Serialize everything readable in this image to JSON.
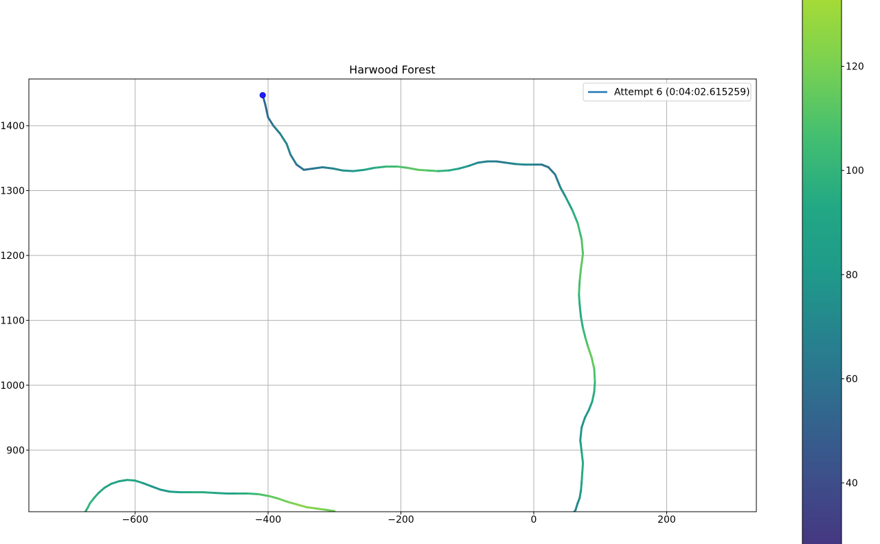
{
  "chart_data": {
    "type": "line",
    "title": "Harwood Forest",
    "xlabel": "",
    "ylabel": "",
    "xlim": [
      -760,
      335
    ],
    "ylim": [
      805,
      1472
    ],
    "x_ticks": [
      -600,
      -400,
      -200,
      0,
      200
    ],
    "x_tick_labels": [
      "−600",
      "−400",
      "−200",
      "0",
      "200"
    ],
    "y_ticks": [
      900,
      1000,
      1100,
      1200,
      1300,
      1400
    ],
    "y_tick_labels": [
      "900",
      "1000",
      "1100",
      "1200",
      "1300",
      "1400"
    ],
    "grid": true,
    "legend": {
      "placement": "top-right",
      "entries": [
        "Attempt 6 (0:04:02.615259)"
      ]
    },
    "colorbar": {
      "colormap": "viridis",
      "range": [
        28,
        133
      ],
      "ticks": [
        40,
        60,
        80,
        100,
        120
      ],
      "tick_labels": [
        "40",
        "60",
        "80",
        "100",
        "120"
      ]
    },
    "start_marker": {
      "x": -408,
      "y": 1447,
      "color": "#1f1fff"
    },
    "series": [
      {
        "name": "Attempt 6 (0:04:02.615259)",
        "legend_color": "#1f77b4",
        "x": [
          -408,
          -404,
          -400,
          -392,
          -382,
          -372,
          -366,
          -357,
          -346,
          -332,
          -318,
          -302,
          -288,
          -272,
          -255,
          -240,
          -222,
          -205,
          -190,
          -174,
          -160,
          -144,
          -128,
          -112,
          -98,
          -84,
          -70,
          -56,
          -42,
          -28,
          -14,
          0,
          12,
          22,
          32,
          40,
          48,
          58,
          66,
          72,
          74,
          71,
          69,
          68,
          69,
          71,
          74,
          78,
          82,
          87,
          91,
          92,
          91,
          88,
          83,
          77,
          72,
          70,
          72,
          74,
          73,
          72,
          71,
          69,
          66,
          63,
          61
        ],
        "y": [
          1447,
          1432,
          1413,
          1400,
          1388,
          1372,
          1355,
          1340,
          1332,
          1334,
          1336,
          1334,
          1331,
          1330,
          1332,
          1335,
          1337,
          1337,
          1335,
          1332,
          1331,
          1330,
          1331,
          1334,
          1338,
          1343,
          1345,
          1345,
          1343,
          1341,
          1340,
          1340,
          1340,
          1336,
          1325,
          1305,
          1290,
          1270,
          1250,
          1225,
          1202,
          1180,
          1160,
          1140,
          1125,
          1105,
          1088,
          1072,
          1058,
          1043,
          1025,
          1005,
          990,
          975,
          962,
          950,
          935,
          915,
          898,
          880,
          865,
          850,
          838,
          826,
          818,
          808,
          805
        ],
        "speed": [
          60,
          58,
          60,
          66,
          72,
          78,
          72,
          66,
          62,
          64,
          70,
          74,
          80,
          86,
          92,
          98,
          106,
          112,
          116,
          120,
          118,
          110,
          100,
          92,
          86,
          78,
          72,
          68,
          70,
          76,
          80,
          74,
          68,
          64,
          66,
          74,
          86,
          98,
          106,
          114,
          118,
          120,
          116,
          108,
          100,
          96,
          104,
          112,
          118,
          122,
          118,
          110,
          102,
          96,
          90,
          86,
          84,
          88,
          94,
          98,
          100,
          96,
          90,
          84,
          80,
          76,
          74
        ]
      },
      {
        "x": [
          -675,
          -672,
          -668,
          -662,
          -655,
          -646,
          -636,
          -624,
          -612,
          -600,
          -588,
          -575,
          -562,
          -548,
          -532,
          -515,
          -498,
          -480,
          -462,
          -446,
          -430,
          -414,
          -398,
          -384,
          -370,
          -356,
          -342,
          -328,
          -314,
          -300
        ],
        "y": [
          805,
          810,
          818,
          826,
          834,
          842,
          848,
          852,
          854,
          853,
          849,
          844,
          839,
          836,
          835,
          835,
          835,
          834,
          833,
          833,
          833,
          832,
          829,
          825,
          820,
          816,
          812,
          810,
          808,
          806
        ],
        "speed": [
          100,
          104,
          108,
          104,
          98,
          94,
          92,
          92,
          94,
          96,
          92,
          86,
          84,
          88,
          94,
          98,
          100,
          96,
          92,
          96,
          104,
          112,
          118,
          122,
          126,
          128,
          130,
          128,
          126,
          122
        ]
      }
    ]
  }
}
